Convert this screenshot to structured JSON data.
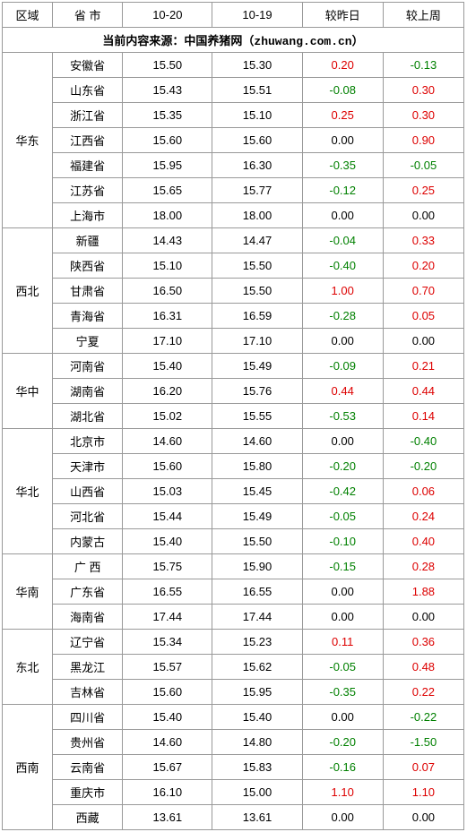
{
  "columns": {
    "region": "区域",
    "province": "省 市",
    "date1": "10-20",
    "date2": "10-19",
    "vs_yesterday": "较昨日",
    "vs_lastweek": "较上周"
  },
  "source": {
    "prefix": "当前内容来源：中国养猪网（",
    "url": "zhuwang.com.cn",
    "suffix": "）"
  },
  "colors": {
    "positive": "#d00000",
    "negative": "#008000",
    "zero": "#000000",
    "border": "#999999"
  },
  "regions": [
    {
      "name": "华东",
      "rows": [
        {
          "province": "安徽省",
          "d1": "15.50",
          "d2": "15.30",
          "dy": "0.20",
          "dw": "-0.13"
        },
        {
          "province": "山东省",
          "d1": "15.43",
          "d2": "15.51",
          "dy": "-0.08",
          "dw": "0.30"
        },
        {
          "province": "浙江省",
          "d1": "15.35",
          "d2": "15.10",
          "dy": "0.25",
          "dw": "0.30"
        },
        {
          "province": "江西省",
          "d1": "15.60",
          "d2": "15.60",
          "dy": "0.00",
          "dw": "0.90"
        },
        {
          "province": "福建省",
          "d1": "15.95",
          "d2": "16.30",
          "dy": "-0.35",
          "dw": "-0.05"
        },
        {
          "province": "江苏省",
          "d1": "15.65",
          "d2": "15.77",
          "dy": "-0.12",
          "dw": "0.25"
        },
        {
          "province": "上海市",
          "d1": "18.00",
          "d2": "18.00",
          "dy": "0.00",
          "dw": "0.00"
        }
      ]
    },
    {
      "name": "西北",
      "rows": [
        {
          "province": "新疆",
          "d1": "14.43",
          "d2": "14.47",
          "dy": "-0.04",
          "dw": "0.33"
        },
        {
          "province": "陕西省",
          "d1": "15.10",
          "d2": "15.50",
          "dy": "-0.40",
          "dw": "0.20"
        },
        {
          "province": "甘肃省",
          "d1": "16.50",
          "d2": "15.50",
          "dy": "1.00",
          "dw": "0.70"
        },
        {
          "province": "青海省",
          "d1": "16.31",
          "d2": "16.59",
          "dy": "-0.28",
          "dw": "0.05"
        },
        {
          "province": "宁夏",
          "d1": "17.10",
          "d2": "17.10",
          "dy": "0.00",
          "dw": "0.00"
        }
      ]
    },
    {
      "name": "华中",
      "rows": [
        {
          "province": "河南省",
          "d1": "15.40",
          "d2": "15.49",
          "dy": "-0.09",
          "dw": "0.21"
        },
        {
          "province": "湖南省",
          "d1": "16.20",
          "d2": "15.76",
          "dy": "0.44",
          "dw": "0.44"
        },
        {
          "province": "湖北省",
          "d1": "15.02",
          "d2": "15.55",
          "dy": "-0.53",
          "dw": "0.14"
        }
      ]
    },
    {
      "name": "华北",
      "rows": [
        {
          "province": "北京市",
          "d1": "14.60",
          "d2": "14.60",
          "dy": "0.00",
          "dw": "-0.40"
        },
        {
          "province": "天津市",
          "d1": "15.60",
          "d2": "15.80",
          "dy": "-0.20",
          "dw": "-0.20"
        },
        {
          "province": "山西省",
          "d1": "15.03",
          "d2": "15.45",
          "dy": "-0.42",
          "dw": "0.06"
        },
        {
          "province": "河北省",
          "d1": "15.44",
          "d2": "15.49",
          "dy": "-0.05",
          "dw": "0.24"
        },
        {
          "province": "内蒙古",
          "d1": "15.40",
          "d2": "15.50",
          "dy": "-0.10",
          "dw": "0.40"
        }
      ]
    },
    {
      "name": "华南",
      "rows": [
        {
          "province": "广 西",
          "d1": "15.75",
          "d2": "15.90",
          "dy": "-0.15",
          "dw": "0.28"
        },
        {
          "province": "广东省",
          "d1": "16.55",
          "d2": "16.55",
          "dy": "0.00",
          "dw": "1.88"
        },
        {
          "province": "海南省",
          "d1": "17.44",
          "d2": "17.44",
          "dy": "0.00",
          "dw": "0.00"
        }
      ]
    },
    {
      "name": "东北",
      "rows": [
        {
          "province": "辽宁省",
          "d1": "15.34",
          "d2": "15.23",
          "dy": "0.11",
          "dw": "0.36"
        },
        {
          "province": "黑龙江",
          "d1": "15.57",
          "d2": "15.62",
          "dy": "-0.05",
          "dw": "0.48"
        },
        {
          "province": "吉林省",
          "d1": "15.60",
          "d2": "15.95",
          "dy": "-0.35",
          "dw": "0.22"
        }
      ]
    },
    {
      "name": "西南",
      "rows": [
        {
          "province": "四川省",
          "d1": "15.40",
          "d2": "15.40",
          "dy": "0.00",
          "dw": "-0.22"
        },
        {
          "province": "贵州省",
          "d1": "14.60",
          "d2": "14.80",
          "dy": "-0.20",
          "dw": "-1.50"
        },
        {
          "province": "云南省",
          "d1": "15.67",
          "d2": "15.83",
          "dy": "-0.16",
          "dw": "0.07"
        },
        {
          "province": "重庆市",
          "d1": "16.10",
          "d2": "15.00",
          "dy": "1.10",
          "dw": "1.10"
        },
        {
          "province": "西藏",
          "d1": "13.61",
          "d2": "13.61",
          "dy": "0.00",
          "dw": "0.00"
        }
      ]
    }
  ]
}
